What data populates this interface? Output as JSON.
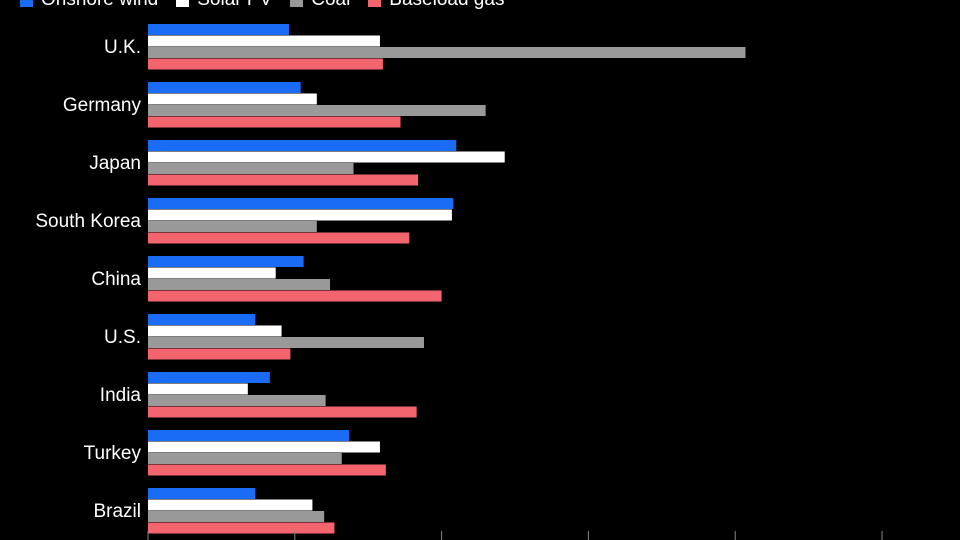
{
  "chart_data": {
    "type": "bar",
    "orientation": "horizontal",
    "categories": [
      "U.K.",
      "Germany",
      "Japan",
      "South Korea",
      "China",
      "U.S.",
      "India",
      "Turkey",
      "Brazil"
    ],
    "series": [
      {
        "name": "Onshore wind",
        "color": "#1a6cf5",
        "values": [
          96,
          104,
          210,
          208,
          106,
          73,
          83,
          137,
          73
        ]
      },
      {
        "name": "Solar PV",
        "color": "#ffffff",
        "values": [
          158,
          115,
          243,
          207,
          87,
          91,
          68,
          158,
          112
        ]
      },
      {
        "name": "Coal",
        "color": "#999999",
        "values": [
          407,
          230,
          140,
          115,
          124,
          188,
          121,
          132,
          120
        ]
      },
      {
        "name": "Baseload gas",
        "color": "#f2646e",
        "values": [
          160,
          172,
          184,
          178,
          200,
          97,
          183,
          162,
          127
        ]
      }
    ],
    "xlim": [
      0,
      550
    ],
    "xticks": [
      0,
      100,
      200,
      300,
      400,
      500
    ],
    "legend_position": "top-left",
    "grid": false
  }
}
